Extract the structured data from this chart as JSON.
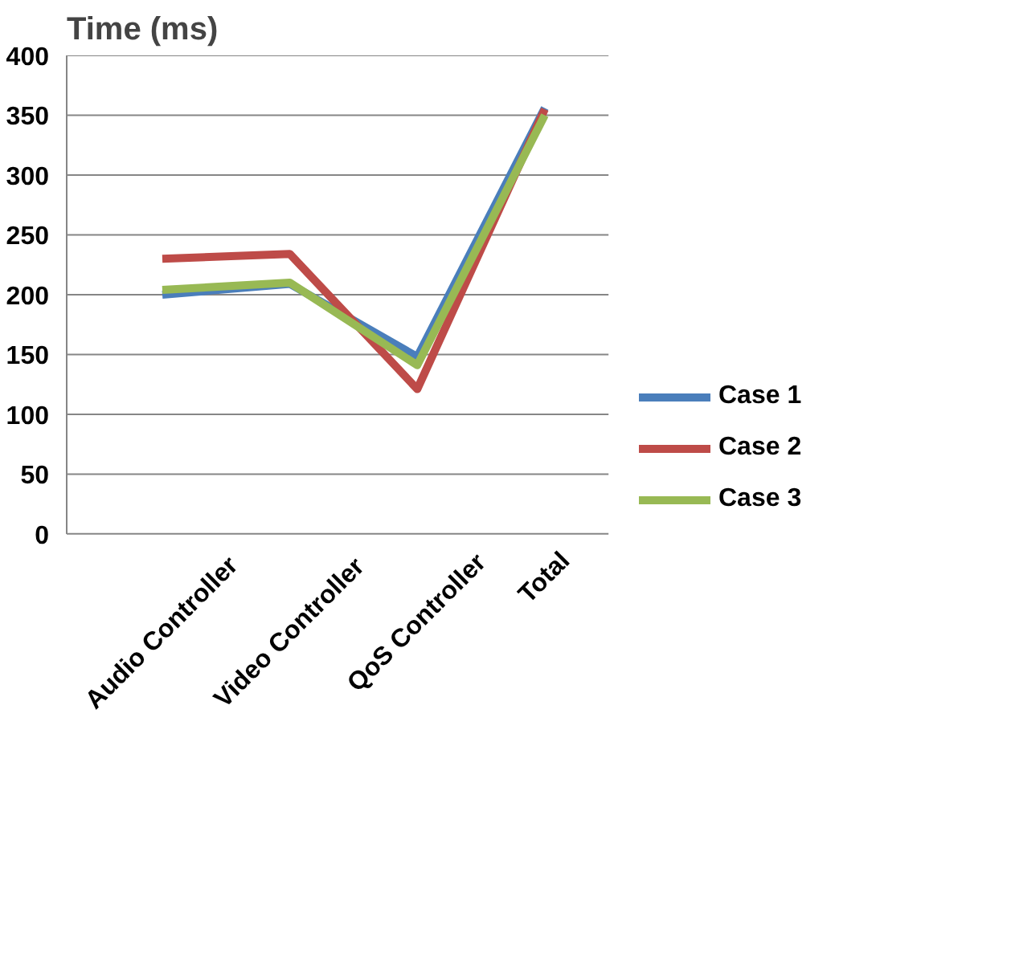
{
  "chart_data": {
    "type": "line",
    "title": "Time (ms)",
    "categories": [
      "Audio Controller",
      "Video Controller",
      "QoS Controller",
      "Total"
    ],
    "series": [
      {
        "name": "Case 1",
        "color": "#4a7ebb",
        "values": [
          200,
          209,
          148,
          356
        ]
      },
      {
        "name": "Case 2",
        "color": "#be4b48",
        "values": [
          230,
          234,
          121,
          355
        ]
      },
      {
        "name": "Case 3",
        "color": "#98b954",
        "values": [
          204,
          210,
          141,
          350
        ]
      }
    ],
    "ylim": [
      0,
      400
    ],
    "yticks": [
      0,
      50,
      100,
      150,
      200,
      250,
      300,
      350,
      400
    ],
    "grid": "y",
    "legend": "right",
    "line_style": "solid"
  }
}
